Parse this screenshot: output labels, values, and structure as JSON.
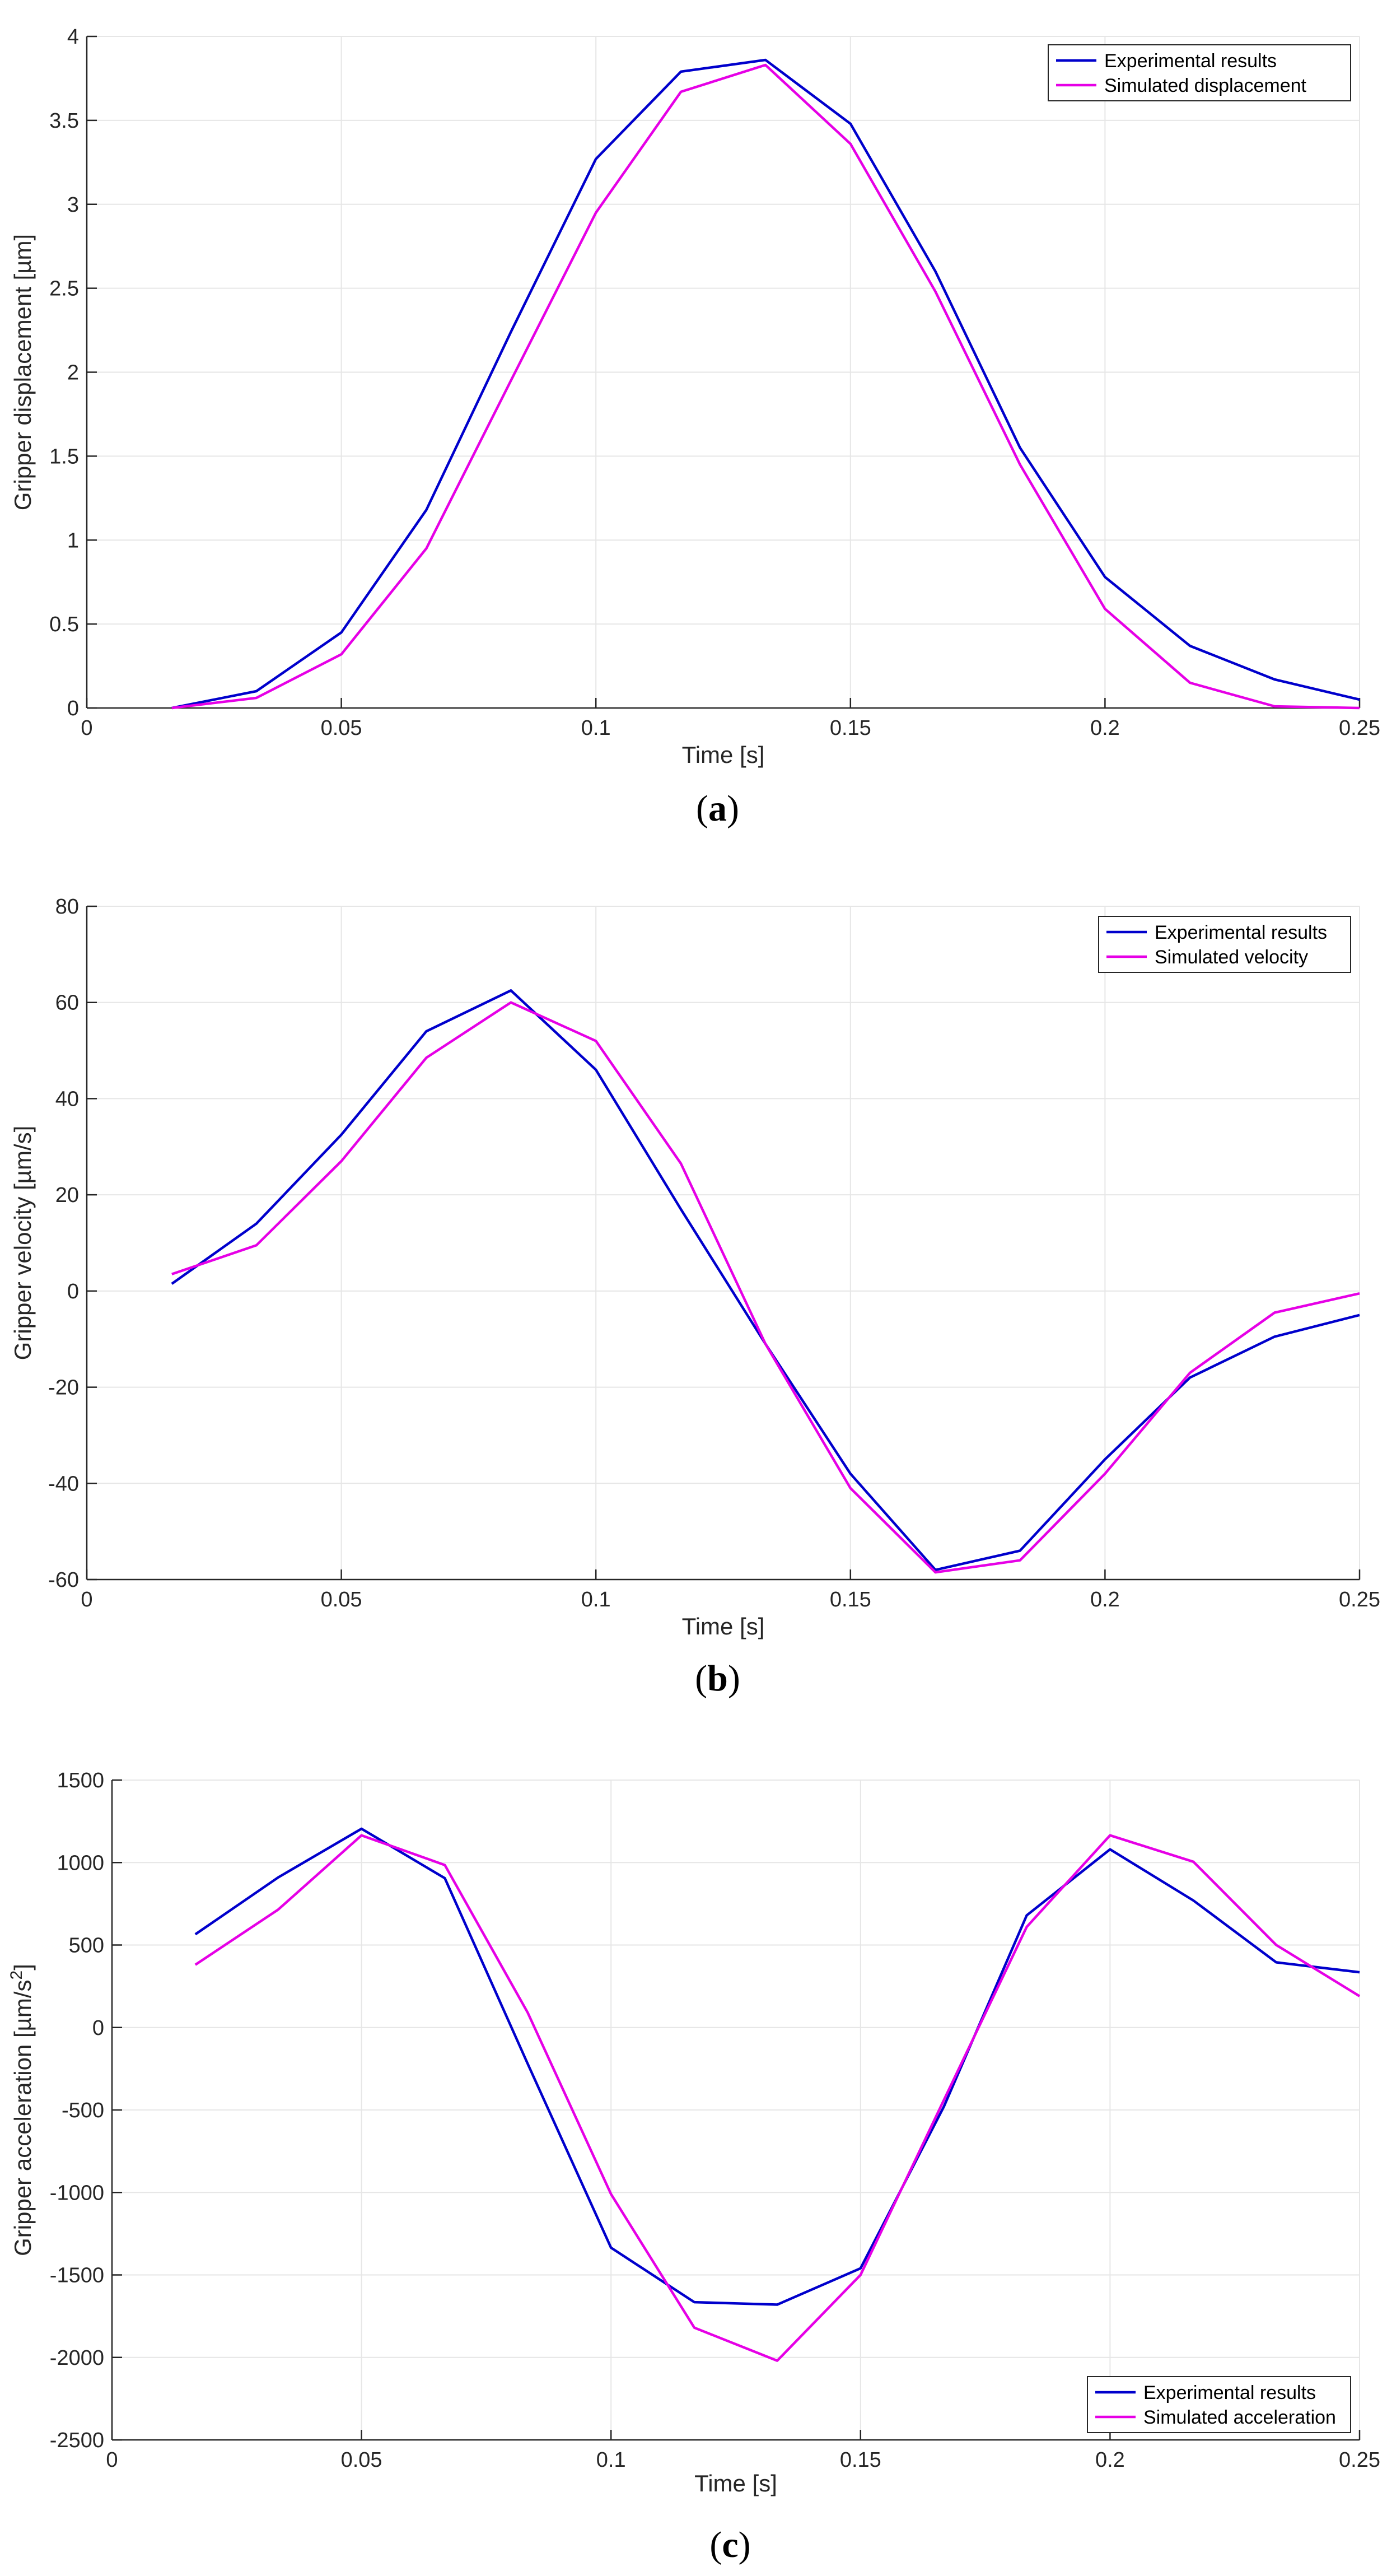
{
  "chart_data": [
    {
      "type": "line",
      "caption": "(a)",
      "caption_parts": [
        "(",
        "a",
        ")"
      ],
      "xlabel": "Time [s]",
      "ylabel": "Gripper displacement [µm]",
      "xlim": [
        0,
        0.25
      ],
      "ylim": [
        0,
        4
      ],
      "xticks": [
        0,
        0.05,
        0.1,
        0.15,
        0.2,
        0.25
      ],
      "xtick_labels": [
        "0",
        "0.05",
        "0.1",
        "0.15",
        "0.2",
        "0.25"
      ],
      "yticks": [
        0,
        0.5,
        1,
        1.5,
        2,
        2.5,
        3,
        3.5,
        4
      ],
      "ytick_labels": [
        "0",
        "0.5",
        "1",
        "1.5",
        "2",
        "2.5",
        "3",
        "3.5",
        "4"
      ],
      "grid": true,
      "legend_position": "top-right",
      "x": [
        0.0167,
        0.0333,
        0.05,
        0.0667,
        0.0833,
        0.1,
        0.1167,
        0.1333,
        0.15,
        0.1667,
        0.1833,
        0.2,
        0.2167,
        0.2333,
        0.25
      ],
      "series": [
        {
          "name": "Experimental results",
          "color": "#0000cc",
          "values": [
            0,
            0.1,
            0.45,
            1.18,
            2.24,
            3.27,
            3.79,
            3.86,
            3.48,
            2.6,
            1.55,
            0.78,
            0.37,
            0.17,
            0.05
          ]
        },
        {
          "name": "Simulated displacement",
          "color": "#e600e6",
          "values": [
            0,
            0.06,
            0.32,
            0.95,
            1.95,
            2.95,
            3.67,
            3.83,
            3.36,
            2.48,
            1.45,
            0.59,
            0.15,
            0.01,
            0.0
          ]
        }
      ]
    },
    {
      "type": "line",
      "caption": "(b)",
      "caption_parts": [
        "(",
        "b",
        ")"
      ],
      "xlabel": "Time [s]",
      "ylabel": "Gripper velocity [µm/s]",
      "xlim": [
        0,
        0.25
      ],
      "ylim": [
        -60,
        80
      ],
      "xticks": [
        0,
        0.05,
        0.1,
        0.15,
        0.2,
        0.25
      ],
      "xtick_labels": [
        "0",
        "0.05",
        "0.1",
        "0.15",
        "0.2",
        "0.25"
      ],
      "yticks": [
        -60,
        -40,
        -20,
        0,
        20,
        40,
        60,
        80
      ],
      "ytick_labels": [
        "-60",
        "-40",
        "-20",
        "0",
        "20",
        "40",
        "60",
        "80"
      ],
      "grid": true,
      "legend_position": "top-right",
      "x": [
        0.0167,
        0.0333,
        0.05,
        0.0667,
        0.0833,
        0.1,
        0.1167,
        0.1333,
        0.15,
        0.1667,
        0.1833,
        0.2,
        0.2167,
        0.2333,
        0.25
      ],
      "series": [
        {
          "name": "Experimental results",
          "color": "#0000cc",
          "values": [
            1.5,
            14,
            32.5,
            54,
            62.5,
            46,
            17,
            -11,
            -38,
            -58,
            -54,
            -35,
            -18,
            -9.5,
            -5
          ]
        },
        {
          "name": "Simulated velocity",
          "color": "#e600e6",
          "values": [
            3.5,
            9.5,
            27,
            48.5,
            60,
            52,
            26.5,
            -11,
            -41,
            -58.5,
            -56,
            -38,
            -17,
            -4.5,
            -0.5
          ]
        }
      ]
    },
    {
      "type": "line",
      "caption": "(c)",
      "caption_parts": [
        "(",
        "c",
        ")"
      ],
      "xlabel": "Time [s]",
      "ylabel": "Gripper acceleration [µm/s",
      "ylabel_superscript": "2",
      "ylabel_suffix": "]",
      "xlim": [
        0,
        0.25
      ],
      "ylim": [
        -2500,
        1500
      ],
      "xticks": [
        0,
        0.05,
        0.1,
        0.15,
        0.2,
        0.25
      ],
      "xtick_labels": [
        "0",
        "0.05",
        "0.1",
        "0.15",
        "0.2",
        "0.25"
      ],
      "yticks": [
        -2500,
        -2000,
        -1500,
        -1000,
        -500,
        0,
        500,
        1000,
        1500
      ],
      "ytick_labels": [
        "-2500",
        "-2000",
        "-1500",
        "-1000",
        "-500",
        "0",
        "500",
        "1000",
        "1500"
      ],
      "grid": true,
      "legend_position": "bottom-right",
      "x": [
        0.0167,
        0.0333,
        0.05,
        0.0667,
        0.0833,
        0.1,
        0.1167,
        0.1333,
        0.15,
        0.1667,
        0.1833,
        0.2,
        0.2167,
        0.2333,
        0.25
      ],
      "series": [
        {
          "name": "Experimental results",
          "color": "#0000cc",
          "values": [
            565,
            910,
            1205,
            905,
            -220,
            -1335,
            -1665,
            -1680,
            -1460,
            -480,
            680,
            1080,
            770,
            395,
            335
          ]
        },
        {
          "name": "Simulated acceleration",
          "color": "#e600e6",
          "values": [
            380,
            715,
            1165,
            985,
            90,
            -1010,
            -1820,
            -2020,
            -1500,
            -440,
            610,
            1165,
            1005,
            500,
            190
          ]
        }
      ]
    }
  ]
}
